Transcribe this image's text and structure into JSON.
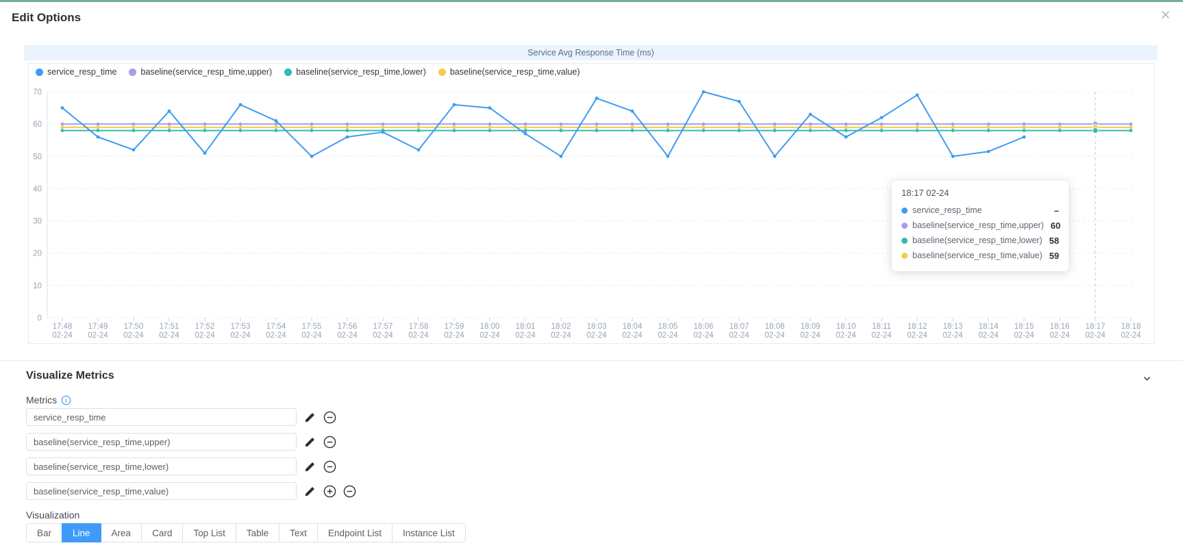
{
  "window": {
    "title": "Edit Options"
  },
  "icons": {
    "close": "close",
    "collapse": "chevron-down",
    "info": "i"
  },
  "colors": {
    "topbar": "#76AD9B",
    "accent": "#3E9BFA",
    "chart_title_bg": "#EAF4FE",
    "blue": "#3D9CF0",
    "purple": "#A79EE8",
    "teal": "#30BCAE",
    "yellow": "#F6CB4E",
    "axis_text": "#98A2B3",
    "grid": "#E4E9F0",
    "crosshair": "#C0C4CC"
  },
  "chart": {
    "title": "Service Avg Response Time (ms)"
  },
  "chart_data": {
    "type": "line",
    "title": "Service Avg Response Time (ms)",
    "x": [
      "17:48",
      "17:49",
      "17:50",
      "17:51",
      "17:52",
      "17:53",
      "17:54",
      "17:55",
      "17:56",
      "17:57",
      "17:58",
      "17:59",
      "18:00",
      "18:01",
      "18:02",
      "18:03",
      "18:04",
      "18:05",
      "18:06",
      "18:07",
      "18:08",
      "18:09",
      "18:10",
      "18:11",
      "18:12",
      "18:13",
      "18:14",
      "18:15",
      "18:16",
      "18:17",
      "18:18"
    ],
    "x_date": "02-24",
    "series": [
      {
        "name": "service_resp_time",
        "color": "#3D9CF0",
        "values": [
          65,
          56,
          52,
          64,
          51,
          66,
          61,
          50,
          56,
          57.5,
          52,
          66,
          65,
          57,
          50,
          68,
          64,
          50,
          70,
          67,
          50,
          63,
          56,
          62,
          69,
          50,
          51.5,
          56,
          null,
          null,
          null
        ]
      },
      {
        "name": "baseline(service_resp_time,upper)",
        "color": "#A79EE8",
        "values": [
          60,
          60,
          60,
          60,
          60,
          60,
          60,
          60,
          60,
          60,
          60,
          60,
          60,
          60,
          60,
          60,
          60,
          60,
          60,
          60,
          60,
          60,
          60,
          60,
          60,
          60,
          60,
          60,
          60,
          60,
          60
        ]
      },
      {
        "name": "baseline(service_resp_time,lower)",
        "color": "#30BCAE",
        "values": [
          58,
          58,
          58,
          58,
          58,
          58,
          58,
          58,
          58,
          58,
          58,
          58,
          58,
          58,
          58,
          58,
          58,
          58,
          58,
          58,
          58,
          58,
          58,
          58,
          58,
          58,
          58,
          58,
          58,
          58,
          58
        ]
      },
      {
        "name": "baseline(service_resp_time,value)",
        "color": "#F6CB4E",
        "values": [
          59,
          59,
          59,
          59,
          59,
          59,
          59,
          59,
          59,
          59,
          59,
          59,
          59,
          59,
          59,
          59,
          59,
          59,
          59,
          59,
          59,
          59,
          59,
          59,
          59,
          59,
          59,
          59,
          59,
          59,
          59
        ]
      }
    ],
    "ylim": [
      0,
      70
    ],
    "y_ticks": [
      0,
      10,
      20,
      30,
      40,
      50,
      60,
      70
    ],
    "grid": true,
    "legend_position": "top-left",
    "crosshair_x": "18:17"
  },
  "tooltip": {
    "title": "18:17 02-24",
    "rows": [
      {
        "name": "service_resp_time",
        "color": "#3D9CF0",
        "value": "–"
      },
      {
        "name": "baseline(service_resp_time,upper)",
        "color": "#A79EE8",
        "value": "60"
      },
      {
        "name": "baseline(service_resp_time,lower)",
        "color": "#30BCAE",
        "value": "58"
      },
      {
        "name": "baseline(service_resp_time,value)",
        "color": "#F6CB4E",
        "value": "59"
      }
    ]
  },
  "panel": {
    "section_title": "Visualize Metrics",
    "metrics_label": "Metrics",
    "metrics": [
      {
        "value": "service_resp_time",
        "actions": [
          "edit",
          "remove"
        ]
      },
      {
        "value": "baseline(service_resp_time,upper)",
        "actions": [
          "edit",
          "remove"
        ]
      },
      {
        "value": "baseline(service_resp_time,lower)",
        "actions": [
          "edit",
          "remove"
        ]
      },
      {
        "value": "baseline(service_resp_time,value)",
        "actions": [
          "edit",
          "add",
          "remove"
        ]
      }
    ],
    "visualization_label": "Visualization",
    "visualization_options": [
      "Bar",
      "Line",
      "Area",
      "Card",
      "Top List",
      "Table",
      "Text",
      "Endpoint List",
      "Instance List"
    ],
    "visualization_selected": "Line"
  }
}
